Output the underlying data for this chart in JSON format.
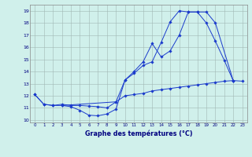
{
  "title": "Graphe des températures (°C)",
  "background_color": "#d0f0eb",
  "grid_color": "#a0b8b4",
  "line_color": "#1a3acc",
  "ylim": [
    9.8,
    19.5
  ],
  "xlim": [
    -0.5,
    23.5
  ],
  "yticks": [
    10,
    11,
    12,
    13,
    14,
    15,
    16,
    17,
    18,
    19
  ],
  "xticks": [
    0,
    1,
    2,
    3,
    4,
    5,
    6,
    7,
    8,
    9,
    10,
    11,
    12,
    13,
    14,
    15,
    16,
    17,
    18,
    19,
    20,
    21,
    22,
    23
  ],
  "line1_x": [
    0,
    1,
    2,
    3,
    4,
    5,
    6,
    7,
    8,
    9,
    10,
    11,
    12,
    13,
    14,
    15,
    16,
    17,
    18,
    19,
    20,
    21,
    22
  ],
  "line1_y": [
    12.1,
    11.3,
    11.2,
    11.2,
    11.1,
    10.8,
    10.4,
    10.35,
    10.5,
    10.9,
    13.3,
    13.85,
    14.5,
    14.8,
    16.4,
    18.1,
    19.0,
    18.9,
    18.9,
    18.0,
    16.5,
    14.9,
    13.2
  ],
  "line2_x": [
    0,
    1,
    2,
    3,
    4,
    5,
    6,
    7,
    8,
    9,
    10,
    11,
    12,
    13,
    14,
    15,
    16,
    17,
    18,
    19,
    20,
    21,
    22,
    23
  ],
  "line2_y": [
    12.1,
    11.3,
    11.2,
    11.3,
    11.2,
    11.2,
    11.15,
    11.1,
    11.0,
    11.5,
    12.0,
    12.1,
    12.2,
    12.4,
    12.5,
    12.6,
    12.7,
    12.8,
    12.9,
    13.0,
    13.1,
    13.2,
    13.25,
    13.2
  ],
  "line3_x": [
    3,
    9,
    10,
    11,
    12,
    13,
    14,
    15,
    16,
    17,
    18,
    19,
    20,
    22
  ],
  "line3_y": [
    11.2,
    11.5,
    13.3,
    14.0,
    14.8,
    16.3,
    15.2,
    15.7,
    17.0,
    18.9,
    18.9,
    18.9,
    18.0,
    13.2
  ]
}
